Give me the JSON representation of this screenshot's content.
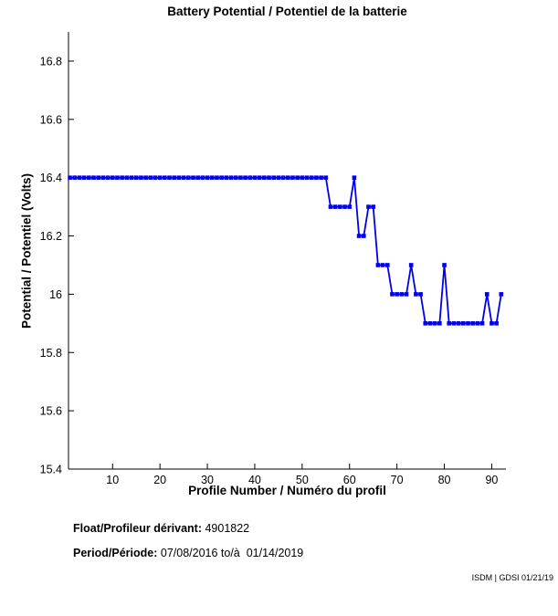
{
  "title": "Battery Potential / Potentiel de la batterie",
  "chart_data": {
    "type": "line",
    "title": "Battery Potential / Potentiel de la batterie",
    "xlabel": "Profile Number / Numéro du profil",
    "ylabel": "Potential / Potentiel (Volts)",
    "xlim": [
      0.7,
      93
    ],
    "ylim": [
      15.4,
      16.9
    ],
    "xticks": [
      10,
      20,
      30,
      40,
      50,
      60,
      70,
      80,
      90
    ],
    "yticks": [
      15.4,
      15.6,
      15.8,
      16,
      16.2,
      16.4,
      16.6,
      16.8
    ],
    "ytick_labels": [
      "15.4",
      "15.6",
      "15.8",
      "16",
      "16.2",
      "16.4",
      "16.6",
      "16.8"
    ],
    "grid": false,
    "legend": "none",
    "line_color": "#0000ee",
    "marker": "square",
    "x": [
      1,
      2,
      3,
      4,
      5,
      6,
      7,
      8,
      9,
      10,
      11,
      12,
      13,
      14,
      15,
      16,
      17,
      18,
      19,
      20,
      21,
      22,
      23,
      24,
      25,
      26,
      27,
      28,
      29,
      30,
      31,
      32,
      33,
      34,
      35,
      36,
      37,
      38,
      39,
      40,
      41,
      42,
      43,
      44,
      45,
      46,
      47,
      48,
      49,
      50,
      51,
      52,
      53,
      54,
      55,
      56,
      57,
      58,
      59,
      60,
      61,
      62,
      63,
      64,
      65,
      66,
      67,
      68,
      69,
      70,
      71,
      72,
      73,
      74,
      75,
      76,
      77,
      78,
      79,
      80,
      81,
      82,
      83,
      84,
      85,
      86,
      87,
      88,
      89,
      90,
      91,
      92
    ],
    "values": [
      16.4,
      16.4,
      16.4,
      16.4,
      16.4,
      16.4,
      16.4,
      16.4,
      16.4,
      16.4,
      16.4,
      16.4,
      16.4,
      16.4,
      16.4,
      16.4,
      16.4,
      16.4,
      16.4,
      16.4,
      16.4,
      16.4,
      16.4,
      16.4,
      16.4,
      16.4,
      16.4,
      16.4,
      16.4,
      16.4,
      16.4,
      16.4,
      16.4,
      16.4,
      16.4,
      16.4,
      16.4,
      16.4,
      16.4,
      16.4,
      16.4,
      16.4,
      16.4,
      16.4,
      16.4,
      16.4,
      16.4,
      16.4,
      16.4,
      16.4,
      16.4,
      16.4,
      16.4,
      16.4,
      16.4,
      16.3,
      16.3,
      16.3,
      16.3,
      16.3,
      16.4,
      16.2,
      16.2,
      16.3,
      16.3,
      16.1,
      16.1,
      16.1,
      16.0,
      16.0,
      16.0,
      16.0,
      16.1,
      16.0,
      16.0,
      15.9,
      15.9,
      15.9,
      15.9,
      16.1,
      15.9,
      15.9,
      15.9,
      15.9,
      15.9,
      15.9,
      15.9,
      15.9,
      16.0,
      15.9,
      15.9,
      16.0
    ]
  },
  "footer": {
    "float_label": "Float/Profileur dérivant:",
    "float_value": " 4901822",
    "period_label": "Period/Période:",
    "period_value": " 07/08/2016 to/à  01/14/2019"
  },
  "watermark": "ISDM | GDSI 01/21/19"
}
